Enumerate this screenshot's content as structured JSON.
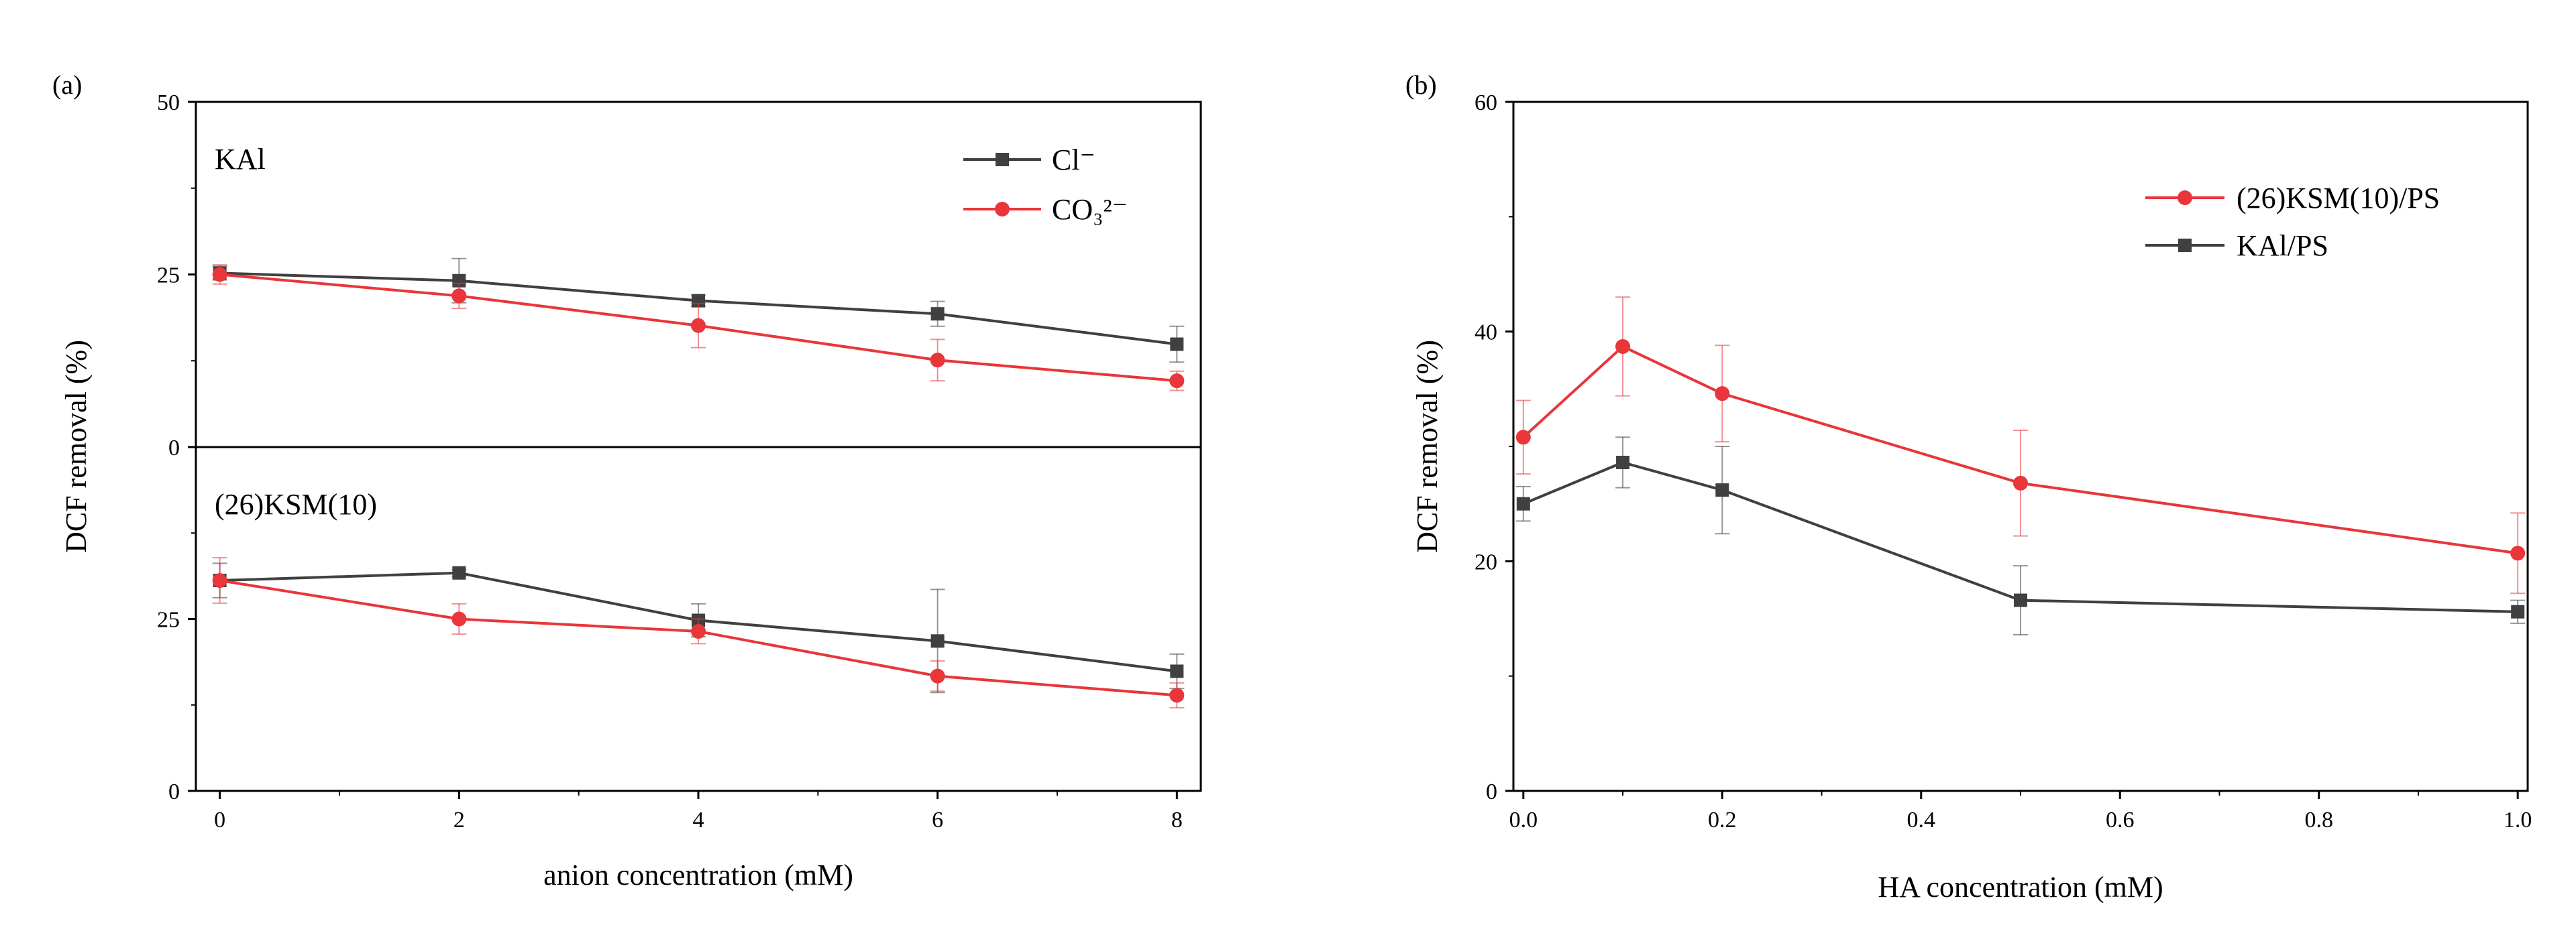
{
  "chart_data": [
    {
      "panel": "(a)",
      "type": "line",
      "xlabel": "anion concentration (mM)",
      "ylabel": "DCF removal (%)",
      "xlim": [
        -0.2,
        8.2
      ],
      "xticks": [
        "0",
        "2",
        "4",
        "6",
        "8"
      ],
      "legend": {
        "location": "top-right",
        "entries": [
          {
            "name": "Cl⁻",
            "color": "#404040",
            "marker": "square"
          },
          {
            "name": "CO₃²⁻",
            "color": "#e8363a",
            "marker": "circle"
          }
        ]
      },
      "subplots": [
        {
          "label": "KAl",
          "ylim": [
            0,
            50
          ],
          "yticks": [
            "0",
            "25",
            "50"
          ],
          "x": [
            0,
            2,
            4,
            6,
            8
          ],
          "series": [
            {
              "name": "Cl⁻",
              "color": "#404040",
              "marker": "square",
              "values": [
                25.2,
                24.1,
                21.2,
                19.3,
                14.9
              ],
              "errors": [
                1.0,
                3.2,
                0.8,
                1.8,
                2.6
              ]
            },
            {
              "name": "CO₃²⁻",
              "color": "#e8363a",
              "marker": "circle",
              "values": [
                25.0,
                21.9,
                17.6,
                12.6,
                9.6
              ],
              "errors": [
                1.4,
                1.8,
                3.2,
                3.0,
                1.4
              ]
            }
          ]
        },
        {
          "label": "(26)KSM(10)",
          "ylim": [
            0,
            50
          ],
          "yticks": [
            "0",
            "25",
            ""
          ],
          "x": [
            0,
            2,
            4,
            6,
            8
          ],
          "series": [
            {
              "name": "Cl⁻",
              "color": "#404040",
              "marker": "square",
              "values": [
                30.6,
                31.7,
                24.8,
                21.8,
                17.4
              ],
              "errors": [
                2.5,
                0.5,
                2.4,
                7.5,
                2.5
              ]
            },
            {
              "name": "CO₃²⁻",
              "color": "#e8363a",
              "marker": "circle",
              "values": [
                30.6,
                25.0,
                23.2,
                16.7,
                13.9
              ],
              "errors": [
                3.3,
                2.2,
                1.8,
                2.2,
                1.8
              ]
            }
          ]
        }
      ]
    },
    {
      "panel": "(b)",
      "type": "line",
      "xlabel": "HA concentration (mM)",
      "ylabel": "DCF removal (%)",
      "xlim": [
        -0.01,
        1.01
      ],
      "ylim": [
        0,
        60
      ],
      "xticks": [
        "0.0",
        "0.2",
        "0.4",
        "0.6",
        "0.8",
        "1.0"
      ],
      "yticks": [
        "0",
        "20",
        "40",
        "60"
      ],
      "x": [
        0,
        0.1,
        0.2,
        0.5,
        1.0
      ],
      "legend": {
        "location": "top-right"
      },
      "series": [
        {
          "name": "(26)KSM(10)/PS",
          "color": "#e8363a",
          "marker": "circle",
          "values": [
            30.8,
            38.7,
            34.6,
            26.8,
            20.7
          ],
          "errors": [
            3.2,
            4.3,
            4.2,
            4.6,
            3.5
          ]
        },
        {
          "name": "KAl/PS",
          "color": "#404040",
          "marker": "square",
          "values": [
            25.0,
            28.6,
            26.2,
            16.6,
            15.6
          ],
          "errors": [
            1.5,
            2.2,
            3.8,
            3.0,
            1.0
          ]
        }
      ]
    }
  ]
}
